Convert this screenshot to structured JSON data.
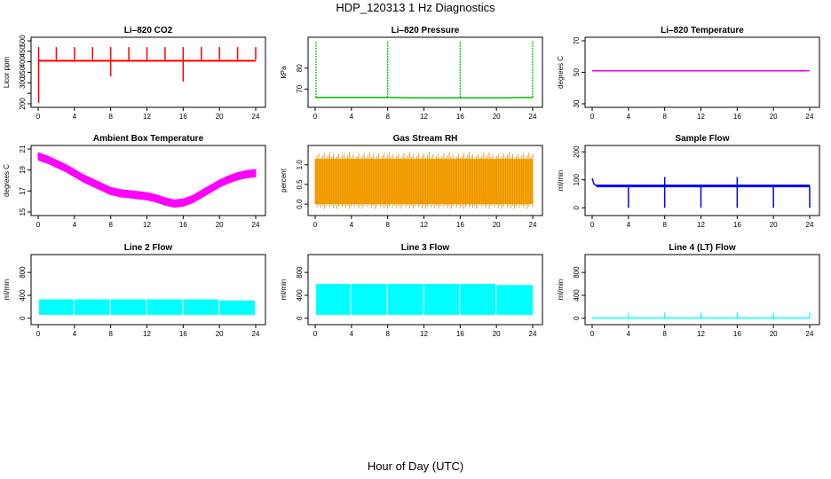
{
  "page": {
    "title": "HDP_120313  1 Hz Diagnostics",
    "xlabel": "Hour of Day (UTC)"
  },
  "chart_data": [
    {
      "type": "line",
      "title": "Li–820 CO2",
      "ylabel": "Licor ppm",
      "xlim": [
        0,
        24
      ],
      "ylim": [
        200,
        500
      ],
      "xticks": [
        0,
        4,
        8,
        12,
        16,
        20,
        24
      ],
      "yticks": [
        200,
        250,
        300,
        350,
        400,
        450,
        500
      ],
      "ytick_labels": [
        "200",
        "",
        "300",
        "350",
        "400",
        "450",
        "500"
      ],
      "color": "#ff0000",
      "series": [
        {
          "x": [
            0,
            0.2,
            1,
            1.5,
            2,
            3,
            4,
            5,
            6,
            7,
            8,
            9,
            10,
            11,
            12,
            13,
            14,
            15,
            16,
            17,
            18,
            19,
            20,
            21,
            22,
            23,
            24
          ],
          "y": [
            410,
            405,
            405,
            405,
            405,
            405,
            405,
            405,
            405,
            405,
            405,
            405,
            405,
            405,
            405,
            405,
            405,
            405,
            405,
            405,
            405,
            405,
            405,
            405,
            405,
            405,
            405
          ]
        }
      ],
      "spikes_up_x": [
        0.05,
        2,
        4,
        6,
        8,
        10,
        12,
        14,
        16,
        18,
        20,
        22,
        24
      ],
      "spikes_up_peak": 470,
      "spikes_down_x": [
        0.05,
        8,
        16
      ],
      "spikes_down_min": [
        205,
        330,
        305
      ]
    },
    {
      "type": "line",
      "title": "Li–820 Pressure",
      "ylabel": "kPa",
      "xlim": [
        0,
        24
      ],
      "ylim": [
        63,
        93
      ],
      "xticks": [
        0,
        4,
        8,
        12,
        16,
        20,
        24
      ],
      "yticks": [
        70,
        80
      ],
      "color": "#00bb00",
      "series": [
        {
          "x": [
            0,
            1,
            4,
            8,
            12,
            16,
            20,
            23.5,
            24
          ],
          "y": [
            66,
            66,
            66,
            66,
            65.8,
            65.8,
            65.8,
            66,
            66
          ]
        }
      ],
      "spikes_x": [
        0.1,
        8,
        16,
        24
      ],
      "spikes_peak": 93
    },
    {
      "type": "line",
      "title": "Li–820 Temperature",
      "ylabel": "degrees C",
      "xlim": [
        0,
        24
      ],
      "ylim": [
        30,
        70
      ],
      "xticks": [
        0,
        4,
        8,
        12,
        16,
        20,
        24
      ],
      "yticks": [
        30,
        50,
        70
      ],
      "color": "#ff00ff",
      "series": [
        {
          "x": [
            0,
            24
          ],
          "y": [
            51,
            51
          ]
        }
      ]
    },
    {
      "type": "line",
      "title": "Ambient Box Temperature",
      "ylabel": "degrees C",
      "xlim": [
        0,
        24
      ],
      "ylim": [
        15,
        21
      ],
      "xticks": [
        0,
        4,
        8,
        12,
        16,
        20,
        24
      ],
      "yticks": [
        15,
        17,
        19,
        21
      ],
      "color": "#ff00ff",
      "band_halfwidth": 0.35,
      "series": [
        {
          "x": [
            0,
            1,
            2,
            3,
            4,
            5,
            6,
            7,
            8,
            9,
            10,
            11,
            12,
            13,
            14,
            15,
            16,
            17,
            18,
            19,
            20,
            21,
            22,
            23,
            24
          ],
          "y": [
            20.3,
            20.0,
            19.6,
            19.2,
            18.7,
            18.2,
            17.8,
            17.4,
            17.0,
            16.8,
            16.7,
            16.6,
            16.5,
            16.3,
            16.0,
            15.8,
            15.9,
            16.2,
            16.7,
            17.2,
            17.7,
            18.1,
            18.4,
            18.6,
            18.7
          ]
        }
      ]
    },
    {
      "type": "line",
      "title": "Gas Stream RH",
      "ylabel": "percent",
      "xlim": [
        0,
        24
      ],
      "ylim": [
        -0.2,
        1.4
      ],
      "xticks": [
        0,
        4,
        8,
        12,
        16,
        20,
        24
      ],
      "yticks": [
        0.0,
        0.5,
        1.0
      ],
      "ytick_labels": [
        "0.0",
        "0.5",
        "1.0"
      ],
      "color": "#ffaa00",
      "band_range": [
        0.0,
        1.15
      ],
      "series": [
        {
          "x": [
            0,
            24
          ],
          "y": [
            0.55,
            0.55
          ]
        }
      ]
    },
    {
      "type": "line",
      "title": "Sample Flow",
      "ylabel": "ml/min",
      "xlim": [
        0,
        24
      ],
      "ylim": [
        -15,
        210
      ],
      "xticks": [
        0,
        4,
        8,
        12,
        16,
        20,
        24
      ],
      "yticks": [
        0,
        100,
        200
      ],
      "color": "#0000ff",
      "series": [
        {
          "x": [
            0,
            0.2,
            0.5,
            24
          ],
          "y": [
            105,
            85,
            78,
            78
          ]
        }
      ],
      "dips_x": [
        4,
        8,
        12,
        16,
        20,
        24
      ],
      "dips_min": 0,
      "peaks_x": [
        8,
        16
      ],
      "peaks_max": [
        110,
        110
      ]
    },
    {
      "type": "area",
      "title": "Line 2 Flow",
      "ylabel": "ml/min",
      "xlim": [
        0,
        24
      ],
      "ylim": [
        -50,
        1050
      ],
      "xticks": [
        0,
        4,
        8,
        12,
        16,
        20,
        24
      ],
      "yticks": [
        0,
        400,
        800
      ],
      "color": "#00ffff",
      "segments": [
        {
          "x0": 0.1,
          "x1": 3.9,
          "low": 60,
          "high": 330
        },
        {
          "x0": 4.0,
          "x1": 7.9,
          "low": 60,
          "high": 330
        },
        {
          "x0": 8.0,
          "x1": 11.9,
          "low": 60,
          "high": 330
        },
        {
          "x0": 12.0,
          "x1": 15.9,
          "low": 60,
          "high": 330
        },
        {
          "x0": 16.0,
          "x1": 19.9,
          "low": 60,
          "high": 330
        },
        {
          "x0": 20.0,
          "x1": 23.9,
          "low": 60,
          "high": 310
        }
      ]
    },
    {
      "type": "area",
      "title": "Line 3 Flow",
      "ylabel": "ml/min",
      "xlim": [
        0,
        24
      ],
      "ylim": [
        -50,
        1050
      ],
      "xticks": [
        0,
        4,
        8,
        12,
        16,
        20,
        24
      ],
      "yticks": [
        0,
        400,
        800
      ],
      "color": "#00ffff",
      "segments": [
        {
          "x0": 0.1,
          "x1": 3.9,
          "low": 60,
          "high": 600
        },
        {
          "x0": 4.0,
          "x1": 7.9,
          "low": 60,
          "high": 600
        },
        {
          "x0": 8.0,
          "x1": 11.9,
          "low": 60,
          "high": 600
        },
        {
          "x0": 12.0,
          "x1": 15.9,
          "low": 60,
          "high": 600
        },
        {
          "x0": 16.0,
          "x1": 19.9,
          "low": 60,
          "high": 600
        },
        {
          "x0": 20.0,
          "x1": 24.0,
          "low": 60,
          "high": 580
        }
      ]
    },
    {
      "type": "line",
      "title": "Line 4 (LT) Flow",
      "ylabel": "ml/min",
      "xlim": [
        0,
        24
      ],
      "ylim": [
        -50,
        1050
      ],
      "xticks": [
        0,
        4,
        8,
        12,
        16,
        20,
        24
      ],
      "yticks": [
        0,
        400,
        800
      ],
      "color": "#00ffff",
      "series": [
        {
          "x": [
            0,
            24
          ],
          "y": [
            5,
            5
          ]
        }
      ],
      "spikes_x": [
        4,
        8,
        12,
        16,
        20,
        24
      ],
      "spikes_peak": 100
    }
  ]
}
